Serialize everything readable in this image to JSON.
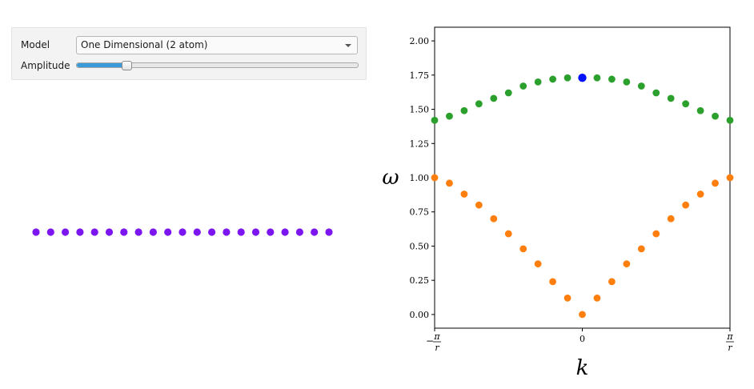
{
  "controls": {
    "model_label": "Model",
    "model_value": "One Dimensional (2 atom)",
    "amplitude_label": "Amplitude",
    "amplitude_fraction": 0.18
  },
  "colors": {
    "atom": "#7b16f0",
    "acoustic": "#ff7f0e",
    "optical": "#2ca02c",
    "selected": "#0010ff",
    "accent": "#3d9ad8"
  },
  "chain": {
    "atom_count": 21
  },
  "chart_data": {
    "type": "scatter",
    "xlabel": "k",
    "ylabel": "ω",
    "ylim": [
      -0.1,
      2.1
    ],
    "xlim": [
      -3.1416,
      3.1416
    ],
    "xticks": [
      {
        "value": -3.1416,
        "label": "-π/r"
      },
      {
        "value": 0,
        "label": "0"
      },
      {
        "value": 3.1416,
        "label": "π/r"
      }
    ],
    "yticks": [
      0.0,
      0.25,
      0.5,
      0.75,
      1.0,
      1.25,
      1.5,
      1.75,
      2.0
    ],
    "ytick_labels": [
      "0.00",
      "0.25",
      "0.50",
      "0.75",
      "1.00",
      "1.25",
      "1.50",
      "1.75",
      "2.00"
    ],
    "grid": false,
    "x": [
      -3.1416,
      -2.7925,
      -2.4435,
      -2.0944,
      -1.7453,
      -1.3963,
      -1.0472,
      -0.6981,
      -0.3491,
      0,
      0.3491,
      0.6981,
      1.0472,
      1.3963,
      1.7453,
      2.0944,
      2.4435,
      2.7925,
      3.1416
    ],
    "series": [
      {
        "values": [
          1.0,
          0.96,
          0.88,
          0.8,
          0.7,
          0.59,
          0.48,
          0.37,
          0.24,
          0.12,
          0.0,
          0.12,
          0.24,
          0.37,
          0.48,
          0.59,
          0.7,
          0.8,
          0.88,
          0.96,
          1.0
        ],
        "color": "#ff7f0e"
      },
      {
        "values": [
          1.42,
          1.45,
          1.49,
          1.54,
          1.58,
          1.62,
          1.67,
          1.7,
          1.72,
          1.73,
          1.73,
          1.73,
          1.72,
          1.7,
          1.67,
          1.62,
          1.58,
          1.54,
          1.49,
          1.45,
          1.42
        ],
        "color": "#2ca02c"
      }
    ],
    "x_points": [
      -3.1416,
      -2.8274,
      -2.5133,
      -2.1991,
      -1.885,
      -1.5708,
      -1.2566,
      -0.9425,
      -0.6283,
      -0.3142,
      0,
      0.3142,
      0.6283,
      0.9425,
      1.2566,
      1.5708,
      1.885,
      2.1991,
      2.5133,
      2.8274,
      3.1416
    ],
    "highlight": {
      "x": 0,
      "y": 1.73,
      "color": "#0010ff"
    }
  }
}
